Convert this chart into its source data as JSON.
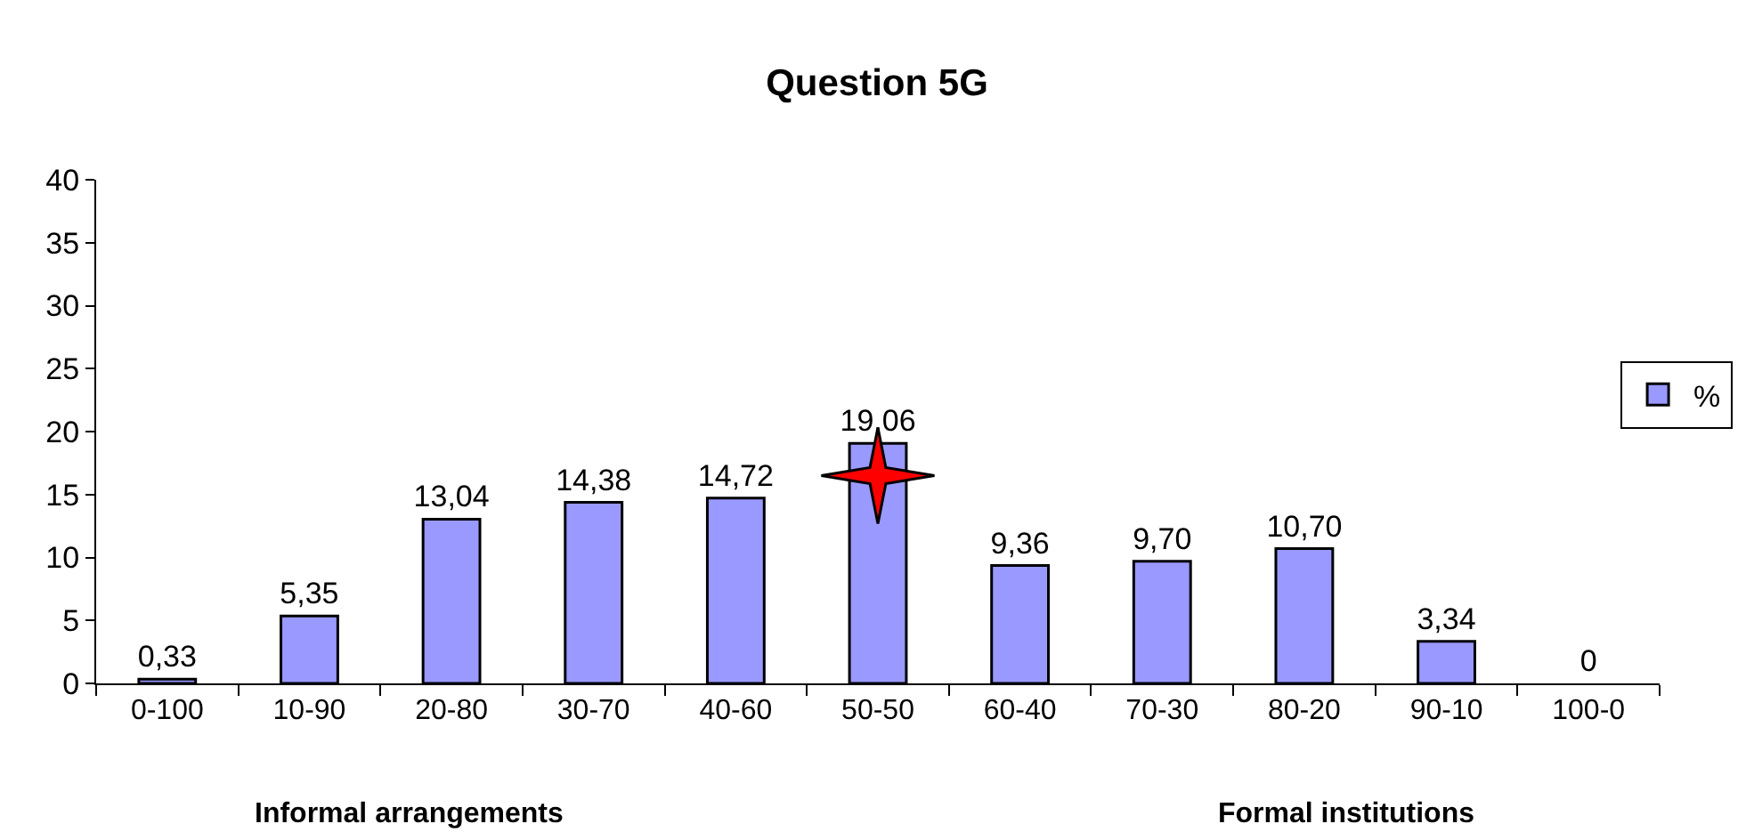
{
  "chart_data": {
    "type": "bar",
    "title": "Question 5G",
    "categories": [
      "0-100",
      "10-90",
      "20-80",
      "30-70",
      "40-60",
      "50-50",
      "60-40",
      "70-30",
      "80-20",
      "90-10",
      "100-0"
    ],
    "series": [
      {
        "name": "%",
        "color": "#9999ff",
        "values": [
          0.33,
          5.35,
          13.04,
          14.38,
          14.72,
          19.06,
          9.36,
          9.7,
          10.7,
          3.34,
          0
        ],
        "value_labels": [
          "0,33",
          "5,35",
          "13,04",
          "14,38",
          "14,72",
          "19,06",
          "9,36",
          "9,70",
          "10,70",
          "3,34",
          "0"
        ]
      }
    ],
    "ylim": [
      0,
      40
    ],
    "yticks": [
      0,
      5,
      10,
      15,
      20,
      25,
      30,
      35,
      40
    ],
    "grid": false,
    "legend": "right",
    "annotations": [
      "Informal arrangements",
      "Formal institutions"
    ]
  }
}
